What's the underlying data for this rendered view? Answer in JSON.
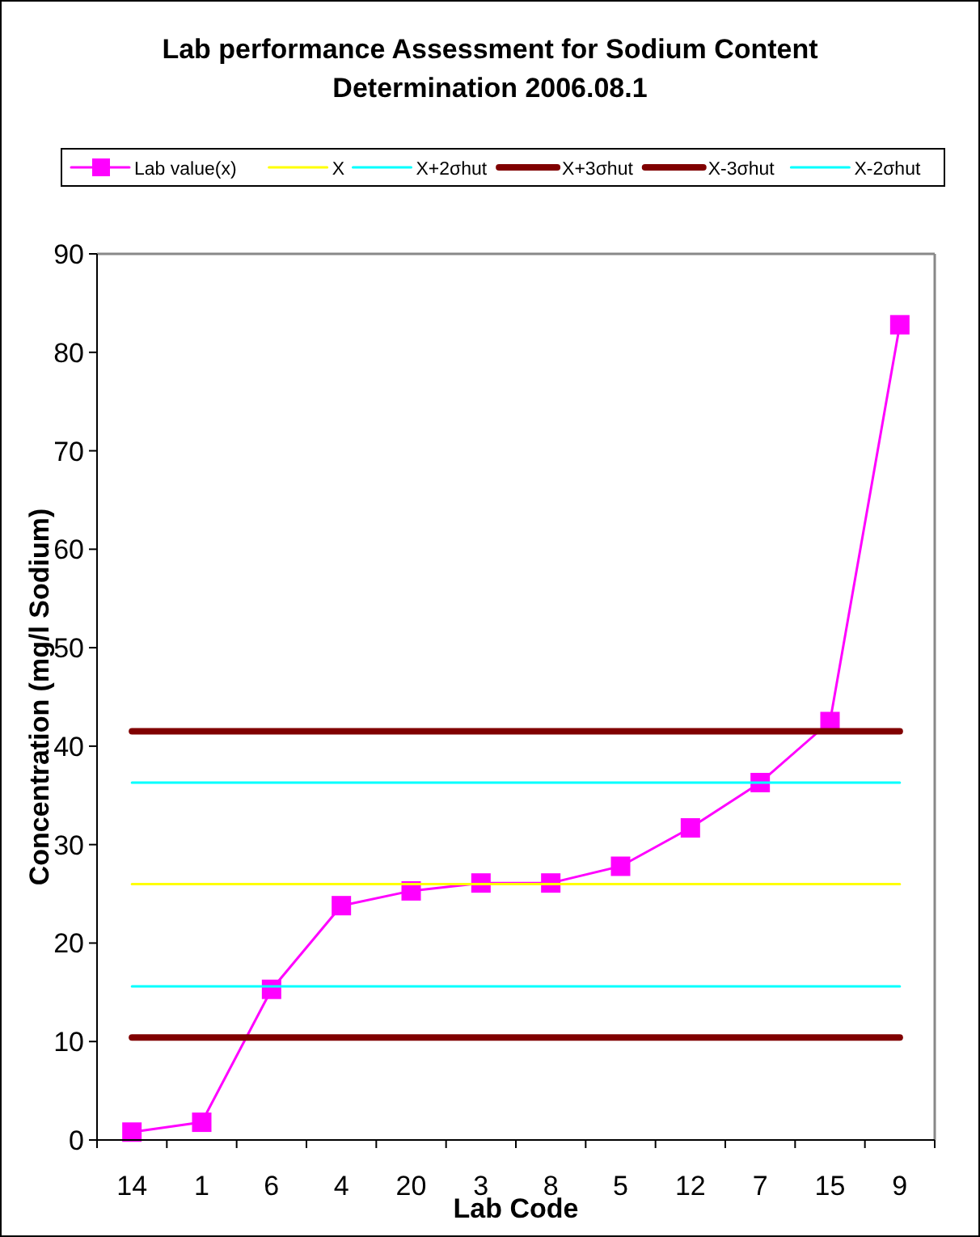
{
  "chart_data": {
    "type": "line",
    "title": "Lab performance Assessment for Sodium Content Determination 2006.08.1",
    "xlabel": "Lab Code",
    "ylabel": "Concentration (mg/l Sodium)",
    "categories": [
      "14",
      "1",
      "6",
      "4",
      "20",
      "3",
      "8",
      "5",
      "12",
      "7",
      "15",
      "9"
    ],
    "ylim": [
      0,
      90
    ],
    "yticks": [
      0,
      10,
      20,
      30,
      40,
      50,
      60,
      70,
      80,
      90
    ],
    "grid": false,
    "legend": "top",
    "series": [
      {
        "name": "Lab value(x)",
        "color": "#ff00ff",
        "marker": "square",
        "values": [
          0.8,
          1.8,
          15.3,
          23.8,
          25.3,
          26.1,
          26.1,
          27.8,
          31.7,
          36.3,
          42.5,
          82.8
        ]
      },
      {
        "name": "X",
        "color": "#ffff00",
        "marker": "none",
        "values": [
          26,
          26,
          26,
          26,
          26,
          26,
          26,
          26,
          26,
          26,
          26,
          26
        ]
      },
      {
        "name": "X+2σhut",
        "color": "#00ffff",
        "marker": "none",
        "values": [
          36.3,
          36.3,
          36.3,
          36.3,
          36.3,
          36.3,
          36.3,
          36.3,
          36.3,
          36.3,
          36.3,
          36.3
        ]
      },
      {
        "name": "X+3σhut",
        "color": "#800000",
        "marker": "none",
        "values": [
          41.5,
          41.5,
          41.5,
          41.5,
          41.5,
          41.5,
          41.5,
          41.5,
          41.5,
          41.5,
          41.5,
          41.5
        ]
      },
      {
        "name": "X-3σhut",
        "color": "#800000",
        "marker": "none",
        "values": [
          10.4,
          10.4,
          10.4,
          10.4,
          10.4,
          10.4,
          10.4,
          10.4,
          10.4,
          10.4,
          10.4,
          10.4
        ]
      },
      {
        "name": "X-2σhut",
        "color": "#00ffff",
        "marker": "none",
        "values": [
          15.6,
          15.6,
          15.6,
          15.6,
          15.6,
          15.6,
          15.6,
          15.6,
          15.6,
          15.6,
          15.6,
          15.6
        ]
      }
    ]
  }
}
